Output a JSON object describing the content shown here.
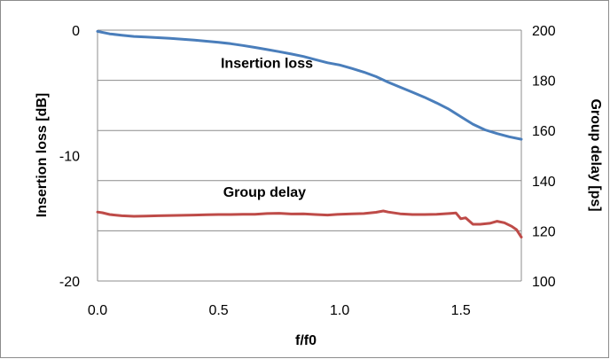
{
  "chart_data": {
    "type": "line",
    "title": "",
    "xlabel": "f/f0",
    "ylabel_left": "Insertion loss [dB]",
    "ylabel_right": "Group delay [ps]",
    "xlim": [
      0,
      1.75
    ],
    "ylim_left": [
      -20,
      0
    ],
    "ylim_right": [
      100,
      200
    ],
    "x_ticks": [
      "0.0",
      "0.5",
      "1.0",
      "1.5"
    ],
    "x_tick_values": [
      0,
      0.5,
      1.0,
      1.5
    ],
    "y_left_ticks": [
      "0",
      "-10",
      "-20"
    ],
    "y_left_tick_values": [
      0,
      -10,
      -20
    ],
    "y_right_ticks": [
      "200",
      "180",
      "160",
      "140",
      "120",
      "100"
    ],
    "y_right_tick_values": [
      200,
      180,
      160,
      140,
      120,
      100
    ],
    "grid": "horizontal",
    "legend": "none",
    "annotations": [
      {
        "text": "Insertion loss",
        "x": 0.82,
        "y_left": -3.0
      },
      {
        "text": "Group delay",
        "x": 0.83,
        "y_left": -13.3
      }
    ],
    "series": [
      {
        "axis": "left",
        "color": "#4a7ebb",
        "points": [
          [
            0,
            -0.1
          ],
          [
            0.05,
            -0.3
          ],
          [
            0.1,
            -0.4
          ],
          [
            0.15,
            -0.5
          ],
          [
            0.2,
            -0.55
          ],
          [
            0.25,
            -0.6
          ],
          [
            0.3,
            -0.65
          ],
          [
            0.35,
            -0.72
          ],
          [
            0.4,
            -0.8
          ],
          [
            0.45,
            -0.88
          ],
          [
            0.5,
            -0.97
          ],
          [
            0.55,
            -1.08
          ],
          [
            0.6,
            -1.22
          ],
          [
            0.65,
            -1.38
          ],
          [
            0.7,
            -1.55
          ],
          [
            0.75,
            -1.72
          ],
          [
            0.8,
            -1.9
          ],
          [
            0.85,
            -2.1
          ],
          [
            0.9,
            -2.35
          ],
          [
            0.95,
            -2.6
          ],
          [
            1.0,
            -2.78
          ],
          [
            1.05,
            -3.05
          ],
          [
            1.1,
            -3.35
          ],
          [
            1.15,
            -3.7
          ],
          [
            1.2,
            -4.15
          ],
          [
            1.25,
            -4.55
          ],
          [
            1.3,
            -4.95
          ],
          [
            1.35,
            -5.35
          ],
          [
            1.4,
            -5.8
          ],
          [
            1.45,
            -6.3
          ],
          [
            1.5,
            -6.9
          ],
          [
            1.55,
            -7.5
          ],
          [
            1.6,
            -7.95
          ],
          [
            1.65,
            -8.25
          ],
          [
            1.7,
            -8.5
          ],
          [
            1.75,
            -8.7
          ]
        ]
      },
      {
        "axis": "right",
        "color": "#be4b48",
        "points": [
          [
            0,
            127.5
          ],
          [
            0.02,
            127.2
          ],
          [
            0.05,
            126.5
          ],
          [
            0.1,
            126.0
          ],
          [
            0.15,
            125.8
          ],
          [
            0.2,
            125.9
          ],
          [
            0.25,
            126.0
          ],
          [
            0.3,
            126.1
          ],
          [
            0.35,
            126.2
          ],
          [
            0.4,
            126.3
          ],
          [
            0.45,
            126.4
          ],
          [
            0.5,
            126.5
          ],
          [
            0.55,
            126.5
          ],
          [
            0.6,
            126.6
          ],
          [
            0.65,
            126.6
          ],
          [
            0.7,
            126.9
          ],
          [
            0.75,
            127.0
          ],
          [
            0.8,
            126.7
          ],
          [
            0.85,
            126.8
          ],
          [
            0.9,
            126.5
          ],
          [
            0.95,
            126.3
          ],
          [
            1.0,
            126.6
          ],
          [
            1.05,
            126.8
          ],
          [
            1.1,
            126.9
          ],
          [
            1.15,
            127.4
          ],
          [
            1.18,
            127.9
          ],
          [
            1.2,
            127.5
          ],
          [
            1.25,
            126.8
          ],
          [
            1.3,
            126.5
          ],
          [
            1.35,
            126.5
          ],
          [
            1.4,
            126.6
          ],
          [
            1.45,
            126.9
          ],
          [
            1.48,
            127.1
          ],
          [
            1.5,
            124.8
          ],
          [
            1.52,
            125.2
          ],
          [
            1.55,
            122.6
          ],
          [
            1.58,
            122.6
          ],
          [
            1.62,
            123.0
          ],
          [
            1.65,
            123.8
          ],
          [
            1.68,
            123.2
          ],
          [
            1.71,
            121.8
          ],
          [
            1.73,
            120.5
          ],
          [
            1.75,
            117.5
          ]
        ]
      }
    ]
  }
}
